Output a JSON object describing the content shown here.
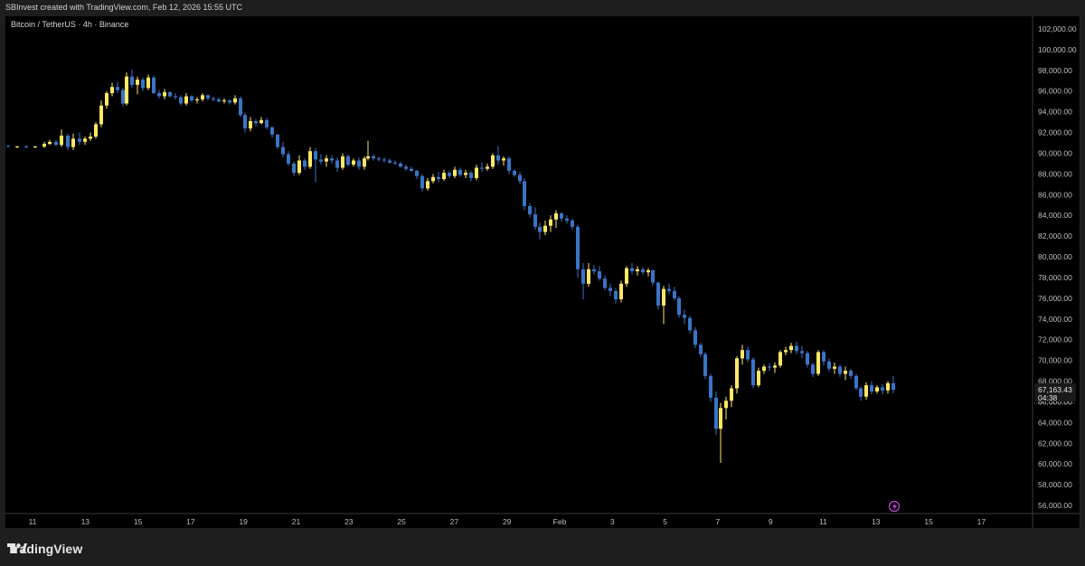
{
  "header": {
    "caption": "SBInvest created with TradingView.com, Feb 12, 2026 15:55 UTC"
  },
  "brand": {
    "name": "TradingView"
  },
  "colors": {
    "up": "#ffe866",
    "down": "#3a74c7",
    "background": "#000000",
    "axis_text": "#bfbfbf",
    "price_tag_bg": "#1a1a1a"
  },
  "chart_data": {
    "type": "candlestick",
    "symbol_label": "Bitcoin / TetherUS · 4h · Binance",
    "interval": "4h",
    "x_ticks": [
      "11",
      "13",
      "15",
      "17",
      "19",
      "21",
      "23",
      "25",
      "27",
      "29",
      "Feb",
      "3",
      "5",
      "7",
      "9",
      "11",
      "13",
      "15",
      "17"
    ],
    "y_ticks": [
      "102,000.00",
      "100,000.00",
      "98,000.00",
      "96,000.00",
      "94,000.00",
      "92,000.00",
      "90,000.00",
      "88,000.00",
      "86,000.00",
      "84,000.00",
      "82,000.00",
      "80,000.00",
      "78,000.00",
      "76,000.00",
      "74,000.00",
      "72,000.00",
      "70,000.00",
      "68,000.00",
      "66,000.00",
      "64,000.00",
      "62,000.00",
      "60,000.00",
      "58,000.00",
      "56,000.00"
    ],
    "ylim": [
      55000,
      103000
    ],
    "last_price": "67,163.43",
    "countdown": "04:38",
    "candles": [
      {
        "x": 9,
        "o": 90700,
        "h": 90800,
        "l": 90600,
        "c": 90650
      },
      {
        "x": 19,
        "o": 90600,
        "h": 90700,
        "l": 90500,
        "c": 90650
      },
      {
        "x": 29,
        "o": 90650,
        "h": 90800,
        "l": 90500,
        "c": 90600
      },
      {
        "x": 39,
        "o": 90600,
        "h": 90700,
        "l": 90500,
        "c": 90650
      },
      {
        "x": 49,
        "o": 90650,
        "h": 91100,
        "l": 90500,
        "c": 90900
      },
      {
        "x": 55,
        "o": 90900,
        "h": 91300,
        "l": 90800,
        "c": 91100
      },
      {
        "x": 62,
        "o": 91100,
        "h": 91300,
        "l": 90700,
        "c": 90800
      },
      {
        "x": 68,
        "o": 90800,
        "h": 92300,
        "l": 90600,
        "c": 91700
      },
      {
        "x": 75,
        "o": 91700,
        "h": 91900,
        "l": 90300,
        "c": 90600
      },
      {
        "x": 81,
        "o": 90600,
        "h": 91900,
        "l": 90300,
        "c": 91400
      },
      {
        "x": 88,
        "o": 91400,
        "h": 92000,
        "l": 90800,
        "c": 91100
      },
      {
        "x": 94,
        "o": 91100,
        "h": 91600,
        "l": 90800,
        "c": 91400
      },
      {
        "x": 100,
        "o": 91400,
        "h": 92000,
        "l": 91200,
        "c": 91600
      },
      {
        "x": 106,
        "o": 91600,
        "h": 93000,
        "l": 91400,
        "c": 92800
      },
      {
        "x": 112,
        "o": 92800,
        "h": 95100,
        "l": 92500,
        "c": 94600
      },
      {
        "x": 118,
        "o": 94600,
        "h": 96000,
        "l": 94300,
        "c": 95800
      },
      {
        "x": 124,
        "o": 95800,
        "h": 96800,
        "l": 95500,
        "c": 96400
      },
      {
        "x": 130,
        "o": 96400,
        "h": 96900,
        "l": 95800,
        "c": 96100
      },
      {
        "x": 136,
        "o": 96100,
        "h": 96300,
        "l": 94500,
        "c": 94800
      },
      {
        "x": 140,
        "o": 94800,
        "h": 97800,
        "l": 94600,
        "c": 97400
      },
      {
        "x": 146,
        "o": 97400,
        "h": 98100,
        "l": 96300,
        "c": 96600
      },
      {
        "x": 152,
        "o": 96600,
        "h": 97400,
        "l": 95700,
        "c": 97100
      },
      {
        "x": 158,
        "o": 97100,
        "h": 97300,
        "l": 96000,
        "c": 96300
      },
      {
        "x": 164,
        "o": 96300,
        "h": 97600,
        "l": 96100,
        "c": 97300
      },
      {
        "x": 170,
        "o": 97300,
        "h": 97500,
        "l": 95700,
        "c": 95800
      },
      {
        "x": 176,
        "o": 95800,
        "h": 96100,
        "l": 95300,
        "c": 95500
      },
      {
        "x": 182,
        "o": 95500,
        "h": 96200,
        "l": 95200,
        "c": 95900
      },
      {
        "x": 188,
        "o": 95900,
        "h": 96000,
        "l": 95400,
        "c": 95500
      },
      {
        "x": 194,
        "o": 95500,
        "h": 95800,
        "l": 95200,
        "c": 95400
      },
      {
        "x": 200,
        "o": 95400,
        "h": 95600,
        "l": 94600,
        "c": 94800
      },
      {
        "x": 206,
        "o": 94800,
        "h": 95800,
        "l": 94600,
        "c": 95500
      },
      {
        "x": 212,
        "o": 95500,
        "h": 95600,
        "l": 94900,
        "c": 95100
      },
      {
        "x": 218,
        "o": 95100,
        "h": 95400,
        "l": 94800,
        "c": 95200
      },
      {
        "x": 224,
        "o": 95200,
        "h": 95800,
        "l": 95000,
        "c": 95600
      },
      {
        "x": 230,
        "o": 95600,
        "h": 95700,
        "l": 95100,
        "c": 95300
      },
      {
        "x": 236,
        "o": 95300,
        "h": 95500,
        "l": 95000,
        "c": 95200
      },
      {
        "x": 242,
        "o": 95200,
        "h": 95400,
        "l": 94900,
        "c": 95000
      },
      {
        "x": 248,
        "o": 95000,
        "h": 95300,
        "l": 94800,
        "c": 95100
      },
      {
        "x": 254,
        "o": 95100,
        "h": 95200,
        "l": 94700,
        "c": 94900
      },
      {
        "x": 260,
        "o": 94900,
        "h": 95600,
        "l": 94700,
        "c": 95300
      },
      {
        "x": 266,
        "o": 95300,
        "h": 95500,
        "l": 93500,
        "c": 93700
      },
      {
        "x": 271,
        "o": 93700,
        "h": 93900,
        "l": 92000,
        "c": 92400
      },
      {
        "x": 277,
        "o": 92400,
        "h": 93500,
        "l": 92100,
        "c": 93100
      },
      {
        "x": 283,
        "o": 93100,
        "h": 93300,
        "l": 92600,
        "c": 92900
      },
      {
        "x": 289,
        "o": 92900,
        "h": 93500,
        "l": 92800,
        "c": 93200
      },
      {
        "x": 295,
        "o": 93200,
        "h": 93400,
        "l": 92300,
        "c": 92500
      },
      {
        "x": 301,
        "o": 92500,
        "h": 92600,
        "l": 91500,
        "c": 91800
      },
      {
        "x": 307,
        "o": 91800,
        "h": 91900,
        "l": 90400,
        "c": 90600
      },
      {
        "x": 313,
        "o": 90600,
        "h": 91100,
        "l": 89600,
        "c": 89900
      },
      {
        "x": 319,
        "o": 89900,
        "h": 90200,
        "l": 88800,
        "c": 89000
      },
      {
        "x": 325,
        "o": 89000,
        "h": 89200,
        "l": 87800,
        "c": 88100
      },
      {
        "x": 331,
        "o": 88100,
        "h": 89800,
        "l": 87900,
        "c": 89300
      },
      {
        "x": 337,
        "o": 89300,
        "h": 89500,
        "l": 88400,
        "c": 88700
      },
      {
        "x": 343,
        "o": 88700,
        "h": 90600,
        "l": 88500,
        "c": 90200
      },
      {
        "x": 349,
        "o": 90200,
        "h": 90500,
        "l": 87200,
        "c": 89400
      },
      {
        "x": 355,
        "o": 89400,
        "h": 89900,
        "l": 88900,
        "c": 89200
      },
      {
        "x": 361,
        "o": 89200,
        "h": 89800,
        "l": 88700,
        "c": 89500
      },
      {
        "x": 367,
        "o": 89500,
        "h": 89800,
        "l": 89000,
        "c": 89300
      },
      {
        "x": 373,
        "o": 89300,
        "h": 89600,
        "l": 88200,
        "c": 88600
      },
      {
        "x": 379,
        "o": 88600,
        "h": 90000,
        "l": 88400,
        "c": 89700
      },
      {
        "x": 385,
        "o": 89700,
        "h": 89900,
        "l": 88700,
        "c": 88900
      },
      {
        "x": 391,
        "o": 88900,
        "h": 89500,
        "l": 88700,
        "c": 89300
      },
      {
        "x": 397,
        "o": 89300,
        "h": 89600,
        "l": 88400,
        "c": 88700
      },
      {
        "x": 403,
        "o": 88700,
        "h": 89700,
        "l": 88400,
        "c": 89500
      },
      {
        "x": 407,
        "o": 89500,
        "h": 91200,
        "l": 89300,
        "c": 89700
      },
      {
        "x": 413,
        "o": 89700,
        "h": 89900,
        "l": 89300,
        "c": 89500
      },
      {
        "x": 419,
        "o": 89500,
        "h": 89700,
        "l": 89200,
        "c": 89400
      },
      {
        "x": 425,
        "o": 89400,
        "h": 89600,
        "l": 89100,
        "c": 89300
      },
      {
        "x": 431,
        "o": 89300,
        "h": 89500,
        "l": 89000,
        "c": 89100
      },
      {
        "x": 437,
        "o": 89100,
        "h": 89300,
        "l": 88900,
        "c": 89000
      },
      {
        "x": 443,
        "o": 89000,
        "h": 89200,
        "l": 88600,
        "c": 88700
      },
      {
        "x": 449,
        "o": 88700,
        "h": 88900,
        "l": 88300,
        "c": 88500
      },
      {
        "x": 455,
        "o": 88500,
        "h": 88700,
        "l": 88200,
        "c": 88300
      },
      {
        "x": 461,
        "o": 88300,
        "h": 88400,
        "l": 87500,
        "c": 87800
      },
      {
        "x": 467,
        "o": 87800,
        "h": 88000,
        "l": 86300,
        "c": 86600
      },
      {
        "x": 473,
        "o": 86600,
        "h": 87600,
        "l": 86400,
        "c": 87300
      },
      {
        "x": 479,
        "o": 87300,
        "h": 88000,
        "l": 87100,
        "c": 87700
      },
      {
        "x": 485,
        "o": 87700,
        "h": 88200,
        "l": 87200,
        "c": 87500
      },
      {
        "x": 491,
        "o": 87500,
        "h": 88400,
        "l": 87300,
        "c": 88100
      },
      {
        "x": 497,
        "o": 88100,
        "h": 88300,
        "l": 87600,
        "c": 87800
      },
      {
        "x": 503,
        "o": 87800,
        "h": 88700,
        "l": 87600,
        "c": 88400
      },
      {
        "x": 509,
        "o": 88400,
        "h": 88600,
        "l": 87700,
        "c": 87900
      },
      {
        "x": 515,
        "o": 87900,
        "h": 88400,
        "l": 87600,
        "c": 88100
      },
      {
        "x": 521,
        "o": 88100,
        "h": 88300,
        "l": 87300,
        "c": 87600
      },
      {
        "x": 527,
        "o": 87600,
        "h": 88900,
        "l": 87400,
        "c": 88600
      },
      {
        "x": 533,
        "o": 88600,
        "h": 89100,
        "l": 88200,
        "c": 88500
      },
      {
        "x": 539,
        "o": 88500,
        "h": 89000,
        "l": 88300,
        "c": 88700
      },
      {
        "x": 545,
        "o": 88700,
        "h": 90000,
        "l": 88500,
        "c": 89800
      },
      {
        "x": 551,
        "o": 89800,
        "h": 90700,
        "l": 88900,
        "c": 89300
      },
      {
        "x": 557,
        "o": 89300,
        "h": 89700,
        "l": 88800,
        "c": 89500
      },
      {
        "x": 563,
        "o": 89500,
        "h": 89700,
        "l": 88000,
        "c": 88300
      },
      {
        "x": 569,
        "o": 88300,
        "h": 88500,
        "l": 87700,
        "c": 87900
      },
      {
        "x": 575,
        "o": 87900,
        "h": 88200,
        "l": 87000,
        "c": 87300
      },
      {
        "x": 580,
        "o": 87300,
        "h": 87600,
        "l": 84500,
        "c": 84900
      },
      {
        "x": 586,
        "o": 84900,
        "h": 85200,
        "l": 83800,
        "c": 84100
      },
      {
        "x": 592,
        "o": 84100,
        "h": 84800,
        "l": 82600,
        "c": 82900
      },
      {
        "x": 597,
        "o": 82900,
        "h": 83300,
        "l": 81700,
        "c": 82400
      },
      {
        "x": 603,
        "o": 82400,
        "h": 83500,
        "l": 82100,
        "c": 83000
      },
      {
        "x": 609,
        "o": 83000,
        "h": 84000,
        "l": 82400,
        "c": 83600
      },
      {
        "x": 615,
        "o": 83600,
        "h": 84500,
        "l": 82800,
        "c": 84200
      },
      {
        "x": 621,
        "o": 84200,
        "h": 84300,
        "l": 83400,
        "c": 83700
      },
      {
        "x": 627,
        "o": 83700,
        "h": 84000,
        "l": 83200,
        "c": 83500
      },
      {
        "x": 633,
        "o": 83500,
        "h": 83700,
        "l": 82600,
        "c": 82900
      },
      {
        "x": 639,
        "o": 82900,
        "h": 83100,
        "l": 78000,
        "c": 78800
      },
      {
        "x": 645,
        "o": 78800,
        "h": 79400,
        "l": 75900,
        "c": 77400
      },
      {
        "x": 651,
        "o": 77400,
        "h": 79400,
        "l": 77100,
        "c": 78800
      },
      {
        "x": 657,
        "o": 78800,
        "h": 79200,
        "l": 78300,
        "c": 78600
      },
      {
        "x": 663,
        "o": 78600,
        "h": 79100,
        "l": 77700,
        "c": 77900
      },
      {
        "x": 669,
        "o": 77900,
        "h": 78200,
        "l": 76800,
        "c": 77000
      },
      {
        "x": 675,
        "o": 77000,
        "h": 77400,
        "l": 76200,
        "c": 76700
      },
      {
        "x": 681,
        "o": 76700,
        "h": 77000,
        "l": 75500,
        "c": 75900
      },
      {
        "x": 687,
        "o": 75900,
        "h": 77700,
        "l": 75600,
        "c": 77400
      },
      {
        "x": 693,
        "o": 77400,
        "h": 79100,
        "l": 77100,
        "c": 78900
      },
      {
        "x": 699,
        "o": 78900,
        "h": 79400,
        "l": 78300,
        "c": 78600
      },
      {
        "x": 705,
        "o": 78600,
        "h": 79100,
        "l": 78200,
        "c": 78800
      },
      {
        "x": 711,
        "o": 78800,
        "h": 79000,
        "l": 78300,
        "c": 78500
      },
      {
        "x": 717,
        "o": 78500,
        "h": 78900,
        "l": 78100,
        "c": 78700
      },
      {
        "x": 722,
        "o": 78700,
        "h": 78800,
        "l": 77200,
        "c": 77500
      },
      {
        "x": 728,
        "o": 77500,
        "h": 77600,
        "l": 74900,
        "c": 75300
      },
      {
        "x": 734,
        "o": 75300,
        "h": 77200,
        "l": 73500,
        "c": 76900
      },
      {
        "x": 740,
        "o": 76900,
        "h": 77400,
        "l": 76400,
        "c": 76700
      },
      {
        "x": 746,
        "o": 76700,
        "h": 77100,
        "l": 75800,
        "c": 76000
      },
      {
        "x": 751,
        "o": 76000,
        "h": 76200,
        "l": 74100,
        "c": 74400
      },
      {
        "x": 757,
        "o": 74400,
        "h": 74900,
        "l": 73500,
        "c": 74100
      },
      {
        "x": 763,
        "o": 74100,
        "h": 74300,
        "l": 72600,
        "c": 72900
      },
      {
        "x": 769,
        "o": 72900,
        "h": 73200,
        "l": 71200,
        "c": 71500
      },
      {
        "x": 775,
        "o": 71500,
        "h": 71700,
        "l": 70300,
        "c": 70600
      },
      {
        "x": 780,
        "o": 70600,
        "h": 70800,
        "l": 68200,
        "c": 68500
      },
      {
        "x": 786,
        "o": 68500,
        "h": 68700,
        "l": 66000,
        "c": 66400
      },
      {
        "x": 792,
        "o": 66400,
        "h": 67000,
        "l": 62800,
        "c": 63400
      },
      {
        "x": 797,
        "o": 63400,
        "h": 65900,
        "l": 60100,
        "c": 65400
      },
      {
        "x": 803,
        "o": 65400,
        "h": 66500,
        "l": 64300,
        "c": 66100
      },
      {
        "x": 809,
        "o": 66100,
        "h": 67600,
        "l": 65500,
        "c": 67300
      },
      {
        "x": 815,
        "o": 67300,
        "h": 70400,
        "l": 66800,
        "c": 70200
      },
      {
        "x": 821,
        "o": 70200,
        "h": 71500,
        "l": 69600,
        "c": 71000
      },
      {
        "x": 827,
        "o": 71000,
        "h": 71300,
        "l": 69800,
        "c": 70100
      },
      {
        "x": 833,
        "o": 70100,
        "h": 70300,
        "l": 67300,
        "c": 67600
      },
      {
        "x": 839,
        "o": 67600,
        "h": 69300,
        "l": 67400,
        "c": 69000
      },
      {
        "x": 845,
        "o": 69000,
        "h": 69600,
        "l": 68700,
        "c": 69400
      },
      {
        "x": 851,
        "o": 69400,
        "h": 69700,
        "l": 69000,
        "c": 69300
      },
      {
        "x": 857,
        "o": 69300,
        "h": 69800,
        "l": 68800,
        "c": 69500
      },
      {
        "x": 863,
        "o": 69500,
        "h": 71000,
        "l": 69300,
        "c": 70800
      },
      {
        "x": 869,
        "o": 70800,
        "h": 71300,
        "l": 70500,
        "c": 71000
      },
      {
        "x": 875,
        "o": 71000,
        "h": 71700,
        "l": 70700,
        "c": 71400
      },
      {
        "x": 881,
        "o": 71400,
        "h": 71800,
        "l": 70600,
        "c": 70900
      },
      {
        "x": 887,
        "o": 70900,
        "h": 71400,
        "l": 70200,
        "c": 70700
      },
      {
        "x": 893,
        "o": 70700,
        "h": 70900,
        "l": 69300,
        "c": 69600
      },
      {
        "x": 899,
        "o": 69600,
        "h": 69800,
        "l": 68400,
        "c": 68700
      },
      {
        "x": 905,
        "o": 68700,
        "h": 71000,
        "l": 68500,
        "c": 70800
      },
      {
        "x": 911,
        "o": 70800,
        "h": 71000,
        "l": 69500,
        "c": 69900
      },
      {
        "x": 917,
        "o": 69900,
        "h": 70200,
        "l": 68900,
        "c": 69200
      },
      {
        "x": 923,
        "o": 69200,
        "h": 69800,
        "l": 68700,
        "c": 69400
      },
      {
        "x": 929,
        "o": 69400,
        "h": 69600,
        "l": 68400,
        "c": 68700
      },
      {
        "x": 935,
        "o": 68700,
        "h": 69400,
        "l": 68100,
        "c": 69000
      },
      {
        "x": 941,
        "o": 69000,
        "h": 69200,
        "l": 68200,
        "c": 68500
      },
      {
        "x": 947,
        "o": 68500,
        "h": 68700,
        "l": 67100,
        "c": 67300
      },
      {
        "x": 952,
        "o": 67300,
        "h": 67500,
        "l": 66100,
        "c": 66500
      },
      {
        "x": 958,
        "o": 66500,
        "h": 67900,
        "l": 66200,
        "c": 67600
      },
      {
        "x": 964,
        "o": 67600,
        "h": 68000,
        "l": 66700,
        "c": 67000
      },
      {
        "x": 970,
        "o": 67000,
        "h": 67600,
        "l": 66800,
        "c": 67400
      },
      {
        "x": 976,
        "o": 67400,
        "h": 67700,
        "l": 66700,
        "c": 67100
      },
      {
        "x": 982,
        "o": 67100,
        "h": 68000,
        "l": 66800,
        "c": 67800
      },
      {
        "x": 988,
        "o": 67800,
        "h": 68500,
        "l": 66800,
        "c": 67163
      }
    ]
  }
}
